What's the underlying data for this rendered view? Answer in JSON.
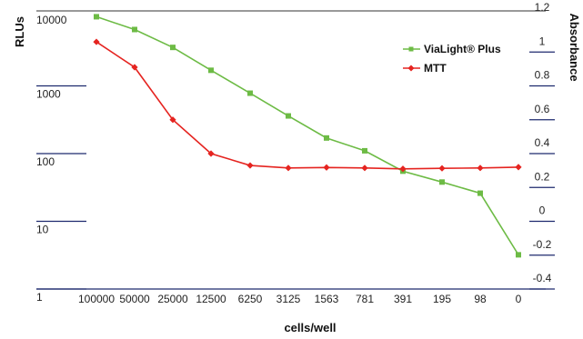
{
  "chart_data": {
    "type": "line",
    "categories": [
      "100000",
      "50000",
      "25000",
      "12500",
      "6250",
      "3125",
      "1563",
      "781",
      "391",
      "195",
      "98",
      "0"
    ],
    "xlabel": "cells/well",
    "ylabel": "RLUs",
    "y2label": "Absorbance",
    "y_scale": "log",
    "ylim": [
      1,
      10000
    ],
    "y_ticks": [
      "10000",
      "1000",
      "100",
      "10",
      "1"
    ],
    "y2lim": [
      -0.4,
      1.2
    ],
    "y2_ticks": [
      "1.2",
      "1",
      "0.8",
      "0.6",
      "0.4",
      "0.2",
      "0",
      "-0.2",
      "-0.4"
    ],
    "legend_position": "top-right",
    "series": [
      {
        "name": "ViaLight® Plus",
        "axis": "left",
        "color": "#6dbb45",
        "marker": "square",
        "values": [
          10500,
          6800,
          3700,
          1700,
          780,
          360,
          170,
          110,
          55,
          38,
          26,
          3.2
        ]
      },
      {
        "name": "MTT",
        "axis": "right",
        "color": "#e52420",
        "marker": "diamond",
        "values": [
          1.06,
          0.91,
          0.6,
          0.4,
          0.33,
          0.315,
          0.318,
          0.315,
          0.31,
          0.313,
          0.315,
          0.32
        ]
      }
    ]
  }
}
